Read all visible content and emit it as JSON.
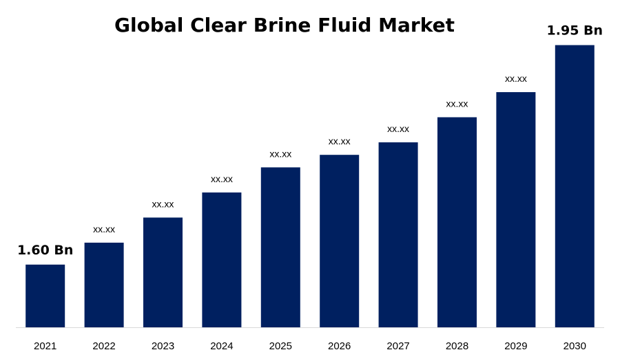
{
  "chart_data": {
    "type": "bar",
    "title": "Global Clear Brine Fluid Market",
    "categories": [
      "2021",
      "2022",
      "2023",
      "2024",
      "2025",
      "2026",
      "2027",
      "2028",
      "2029",
      "2030"
    ],
    "values": [
      1.6,
      1.635,
      1.675,
      1.715,
      1.755,
      1.775,
      1.795,
      1.835,
      1.875,
      1.95
    ],
    "data_labels": [
      "1.60 Bn",
      "xx.xx",
      "xx.xx",
      "xx.xx",
      "xx.xx",
      "xx.xx",
      "xx.xx",
      "xx.xx",
      "xx.xx",
      "1.95 Bn"
    ],
    "ylim": [
      1.5,
      2.0
    ],
    "grid": false,
    "legend": false,
    "bar_color": "#002060",
    "axis_color": "#d9d9d9"
  }
}
